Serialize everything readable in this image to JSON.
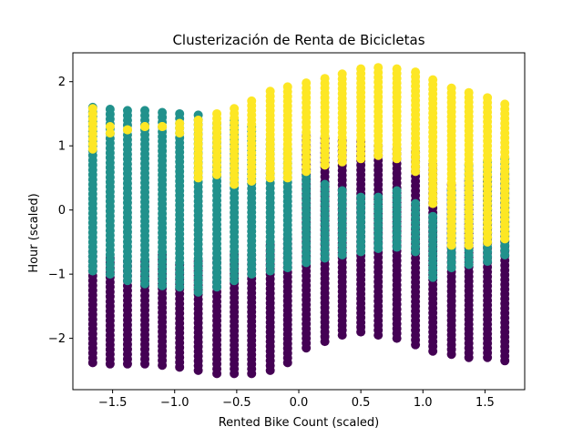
{
  "chart_data": {
    "type": "scatter",
    "title": "Clusterización de Renta de Bicicletas",
    "xlabel": "Rented Bike Count (scaled)",
    "ylabel": "Hour (scaled)",
    "xlim": [
      -1.82,
      1.82
    ],
    "ylim": [
      -2.8,
      2.45
    ],
    "xticks": [
      -1.5,
      -1.0,
      -0.5,
      0.0,
      0.5,
      1.0,
      1.5
    ],
    "xtick_labels": [
      "−1.5",
      "−1.0",
      "−0.5",
      "0.0",
      "0.5",
      "1.0",
      "1.5"
    ],
    "yticks": [
      -2,
      -1,
      0,
      1,
      2
    ],
    "ytick_labels": [
      "−2",
      "−1",
      "0",
      "1",
      "2"
    ],
    "grid": false,
    "legend": "none",
    "cluster_colors": [
      "#440154",
      "#21918c",
      "#fde725"
    ],
    "columns_x": [
      -1.66,
      -1.52,
      -1.38,
      -1.24,
      -1.1,
      -0.96,
      -0.81,
      -0.66,
      -0.52,
      -0.38,
      -0.23,
      -0.09,
      0.06,
      0.21,
      0.35,
      0.5,
      0.64,
      0.79,
      0.94,
      1.08,
      1.23,
      1.37,
      1.52,
      1.66
    ],
    "series": [
      {
        "cluster": 0,
        "segments": [
          [
            -2.38,
            -0.65
          ],
          [
            -2.4,
            -0.75
          ],
          [
            -2.4,
            -0.8
          ],
          [
            -2.4,
            -0.8
          ],
          [
            -2.42,
            -0.7
          ],
          [
            -2.45,
            -0.85
          ],
          [
            -2.5,
            -0.8
          ],
          [
            -2.55,
            -0.75
          ],
          [
            -2.55,
            -0.7
          ],
          [
            -2.55,
            -0.7
          ],
          [
            -2.5,
            -0.55
          ],
          [
            -2.38,
            -0.45
          ],
          [
            -2.15,
            1.15
          ],
          [
            -2.05,
            1.12
          ],
          [
            -1.95,
            1.07
          ],
          [
            -1.9,
            1.07
          ],
          [
            -1.95,
            1.0
          ],
          [
            -2.0,
            0.95
          ],
          [
            -2.1,
            0.9
          ],
          [
            -2.2,
            0.7
          ],
          [
            -2.25,
            0.4
          ],
          [
            -2.3,
            0.45
          ],
          [
            -2.3,
            0.52
          ],
          [
            -2.35,
            0.55
          ]
        ]
      },
      {
        "cluster": 1,
        "segments": [
          [
            -0.95,
            1.6
          ],
          [
            -1.0,
            1.57
          ],
          [
            -1.1,
            1.55
          ],
          [
            -1.15,
            1.55
          ],
          [
            -1.18,
            1.52
          ],
          [
            -1.2,
            1.5
          ],
          [
            -1.28,
            1.48
          ],
          [
            -1.2,
            1.35
          ],
          [
            -1.1,
            1.4
          ],
          [
            -1.0,
            1.3
          ],
          [
            -0.95,
            1.1
          ],
          [
            -0.9,
            0.95
          ],
          [
            -0.82,
            0.6
          ],
          [
            -0.75,
            0.4
          ],
          [
            -0.7,
            0.3
          ],
          [
            -0.65,
            0.2
          ],
          [
            -0.6,
            0.2
          ],
          [
            -0.58,
            0.3
          ],
          [
            -0.65,
            0.1
          ],
          [
            -1.05,
            -0.1
          ],
          [
            -0.9,
            0.3
          ],
          [
            -0.85,
            0.7
          ],
          [
            -0.8,
            0.75
          ],
          [
            -0.7,
            0.8
          ]
        ]
      },
      {
        "cluster": 2,
        "segments": [
          [
            0.95,
            1.58
          ],
          [
            1.2,
            1.3
          ],
          [
            1.25,
            1.25
          ],
          [
            1.3,
            1.3
          ],
          [
            1.3,
            1.3
          ],
          [
            1.2,
            1.35
          ],
          [
            0.5,
            1.4
          ],
          [
            0.55,
            1.5
          ],
          [
            0.4,
            1.58
          ],
          [
            0.45,
            1.7
          ],
          [
            0.5,
            1.85
          ],
          [
            0.5,
            1.92
          ],
          [
            0.6,
            1.98
          ],
          [
            0.7,
            2.05
          ],
          [
            0.75,
            2.12
          ],
          [
            0.8,
            2.2
          ],
          [
            0.85,
            2.22
          ],
          [
            0.8,
            2.2
          ],
          [
            0.6,
            2.15
          ],
          [
            0.1,
            2.03
          ],
          [
            -0.55,
            1.9
          ],
          [
            -0.55,
            1.83
          ],
          [
            -0.5,
            1.75
          ],
          [
            -0.45,
            1.65
          ]
        ]
      }
    ]
  }
}
